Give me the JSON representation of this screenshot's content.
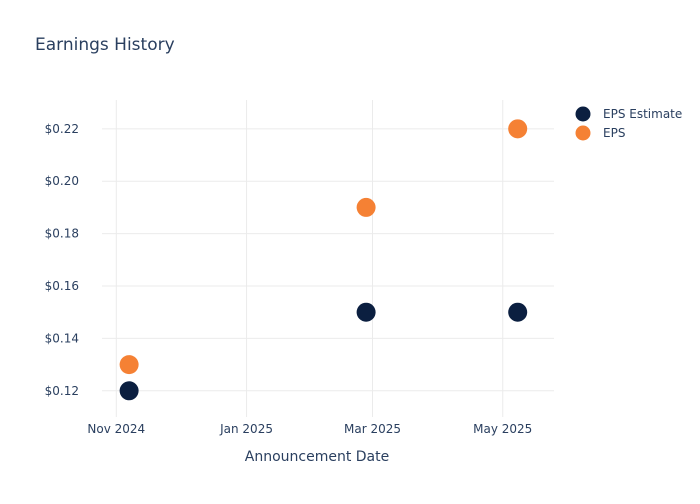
{
  "chart_data": {
    "type": "scatter",
    "title": "Earnings History",
    "xlabel": "Announcement Date",
    "ylabel": "",
    "x_ticks": [
      {
        "date": "2024-11-01",
        "label": "Nov 2024"
      },
      {
        "date": "2025-01-01",
        "label": "Jan 2025"
      },
      {
        "date": "2025-03-01",
        "label": "Mar 2025"
      },
      {
        "date": "2025-05-01",
        "label": "May 2025"
      }
    ],
    "xlim": [
      "2024-10-15",
      "2025-05-25"
    ],
    "y_ticks": [
      {
        "value": 0.12,
        "label": "$0.12"
      },
      {
        "value": 0.14,
        "label": "$0.14"
      },
      {
        "value": 0.16,
        "label": "$0.16"
      },
      {
        "value": 0.18,
        "label": "$0.18"
      },
      {
        "value": 0.2,
        "label": "$0.20"
      },
      {
        "value": 0.22,
        "label": "$0.22"
      }
    ],
    "ylim": [
      0.11,
      0.231
    ],
    "grid": true,
    "legend_position": "top-right",
    "series": [
      {
        "name": "EPS Estimate",
        "color": "#0b1f40",
        "points": [
          {
            "x": "2024-11-07",
            "y": 0.12
          },
          {
            "x": "2025-02-26",
            "y": 0.15
          },
          {
            "x": "2025-05-08",
            "y": 0.15
          }
        ]
      },
      {
        "name": "EPS",
        "color": "#f58134",
        "points": [
          {
            "x": "2024-11-07",
            "y": 0.13
          },
          {
            "x": "2025-02-26",
            "y": 0.19
          },
          {
            "x": "2025-05-08",
            "y": 0.22
          }
        ]
      }
    ]
  }
}
